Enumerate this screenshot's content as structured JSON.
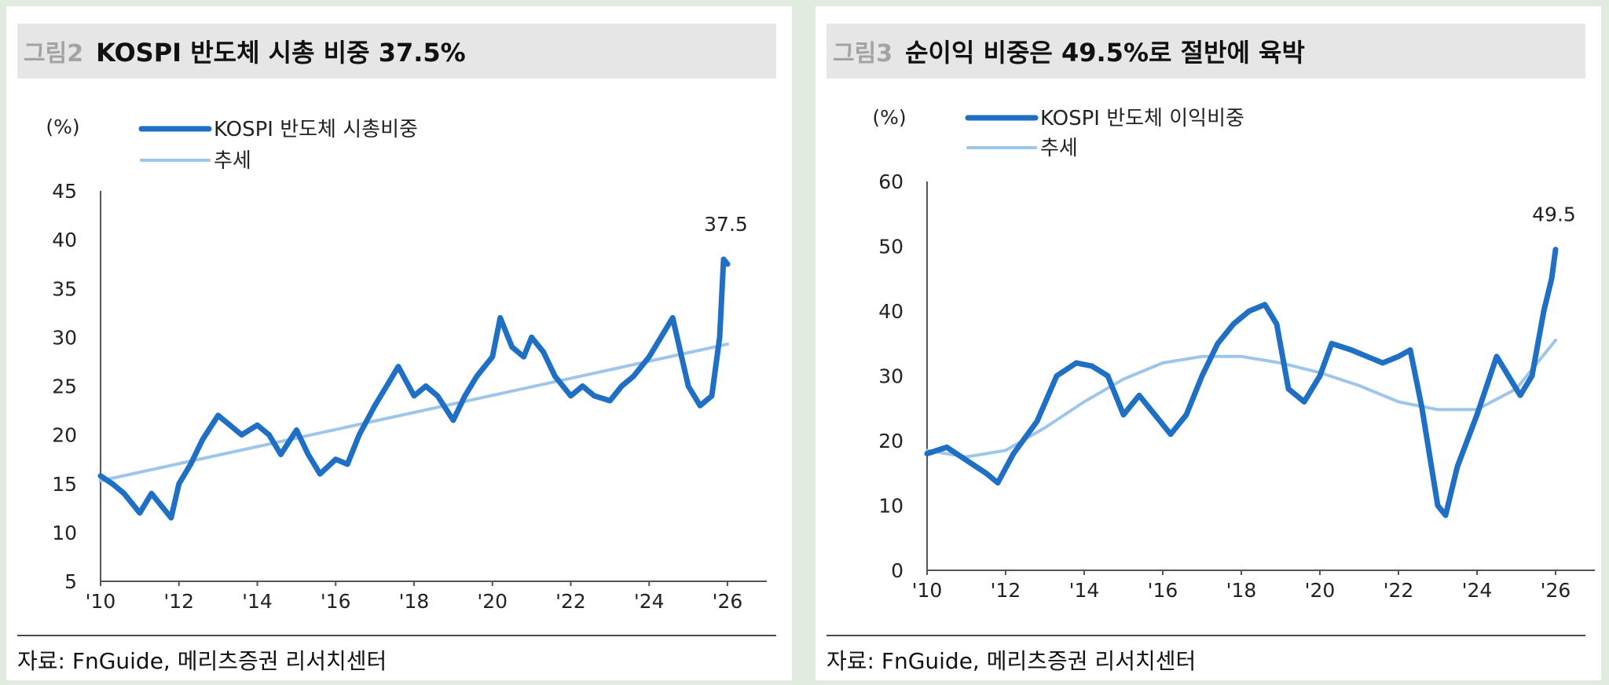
{
  "colors": {
    "main": "#1f6fc5",
    "trend": "#9ec6ea"
  },
  "charts": [
    {
      "label": "그림2",
      "title": "KOSPI 반도체 시총 비중 37.5%",
      "unit": "(%)",
      "source": "자료: FnGuide, 메리츠증권 리서치센터",
      "end_label": "37.5",
      "chart_data": {
        "type": "line",
        "x_ticks": [
          "'10",
          "'12",
          "'14",
          "'16",
          "'18",
          "'20",
          "'22",
          "'24",
          "'26"
        ],
        "ylim": [
          5,
          45
        ],
        "y_ticks": [
          "5",
          "10",
          "15",
          "20",
          "25",
          "30",
          "35",
          "40",
          "45"
        ],
        "series": [
          {
            "name": "KOSPI 반도체 시총비중",
            "x": [
              2010,
              2010.3,
              2010.6,
              2011,
              2011.3,
              2011.6,
              2011.8,
              2012,
              2012.3,
              2012.6,
              2013,
              2013.3,
              2013.6,
              2014,
              2014.3,
              2014.6,
              2015,
              2015.3,
              2015.6,
              2016,
              2016.3,
              2016.6,
              2017,
              2017.3,
              2017.6,
              2018,
              2018.3,
              2018.6,
              2019,
              2019.3,
              2019.6,
              2020,
              2020.2,
              2020.5,
              2020.8,
              2021,
              2021.3,
              2021.6,
              2022,
              2022.3,
              2022.6,
              2023,
              2023.3,
              2023.6,
              2024,
              2024.3,
              2024.6,
              2025,
              2025.3,
              2025.6,
              2025.8,
              2025.9,
              2026
            ],
            "y": [
              15.8,
              15,
              14,
              12,
              14,
              12.5,
              11.5,
              15,
              17,
              19.5,
              22,
              21,
              20,
              21,
              20,
              18,
              20.5,
              18,
              16,
              17.5,
              17,
              20,
              23,
              25,
              27,
              24,
              25,
              24,
              21.5,
              24,
              26,
              28,
              32,
              29,
              28,
              30,
              28.5,
              26,
              24,
              25,
              24,
              23.5,
              25,
              26,
              28,
              30,
              32,
              25,
              23,
              24,
              30,
              38,
              37.5
            ]
          },
          {
            "name": "추세",
            "x": [
              2010,
              2026
            ],
            "y": [
              15.3,
              29.3
            ]
          }
        ]
      }
    },
    {
      "label": "그림3",
      "title": "순이익 비중은 49.5%로 절반에 육박",
      "unit": "(%)",
      "source": "자료: FnGuide, 메리츠증권 리서치센터",
      "end_label": "49.5",
      "chart_data": {
        "type": "line",
        "x_ticks": [
          "'10",
          "'12",
          "'14",
          "'16",
          "'18",
          "'20",
          "'22",
          "'24",
          "'26"
        ],
        "ylim": [
          0,
          60
        ],
        "y_ticks": [
          "0",
          "10",
          "20",
          "30",
          "40",
          "50",
          "60"
        ],
        "series": [
          {
            "name": "KOSPI 반도체 이익비중",
            "x": [
              2010,
              2010.5,
              2011,
              2011.5,
              2011.8,
              2012.2,
              2012.8,
              2013.3,
              2013.8,
              2014.2,
              2014.6,
              2015,
              2015.4,
              2015.8,
              2016.2,
              2016.6,
              2017,
              2017.4,
              2017.8,
              2018.2,
              2018.6,
              2018.9,
              2019.2,
              2019.6,
              2020,
              2020.3,
              2020.8,
              2021.2,
              2021.6,
              2022,
              2022.3,
              2022.6,
              2023,
              2023.2,
              2023.5,
              2024,
              2024.5,
              2024.8,
              2025.1,
              2025.4,
              2025.7,
              2025.9,
              2026
            ],
            "y": [
              18,
              19,
              17,
              15,
              13.5,
              18,
              23,
              30,
              32,
              31.5,
              30,
              24,
              27,
              24,
              21,
              24,
              30,
              35,
              38,
              40,
              41,
              38,
              28,
              26,
              30,
              35,
              34,
              33,
              32,
              33,
              34,
              25,
              10,
              8.5,
              16,
              24,
              33,
              30,
              27,
              30,
              40,
              45,
              49.5
            ]
          },
          {
            "name": "추세",
            "x": [
              2010,
              2011,
              2012,
              2013,
              2014,
              2015,
              2016,
              2017,
              2018,
              2019,
              2020,
              2021,
              2022,
              2023,
              2024,
              2025,
              2026
            ],
            "y": [
              18.5,
              17.5,
              18.5,
              22,
              26,
              29.5,
              32,
              33,
              33,
              32,
              30.5,
              28.5,
              26,
              24.8,
              24.8,
              28,
              35.5
            ]
          }
        ]
      }
    }
  ]
}
